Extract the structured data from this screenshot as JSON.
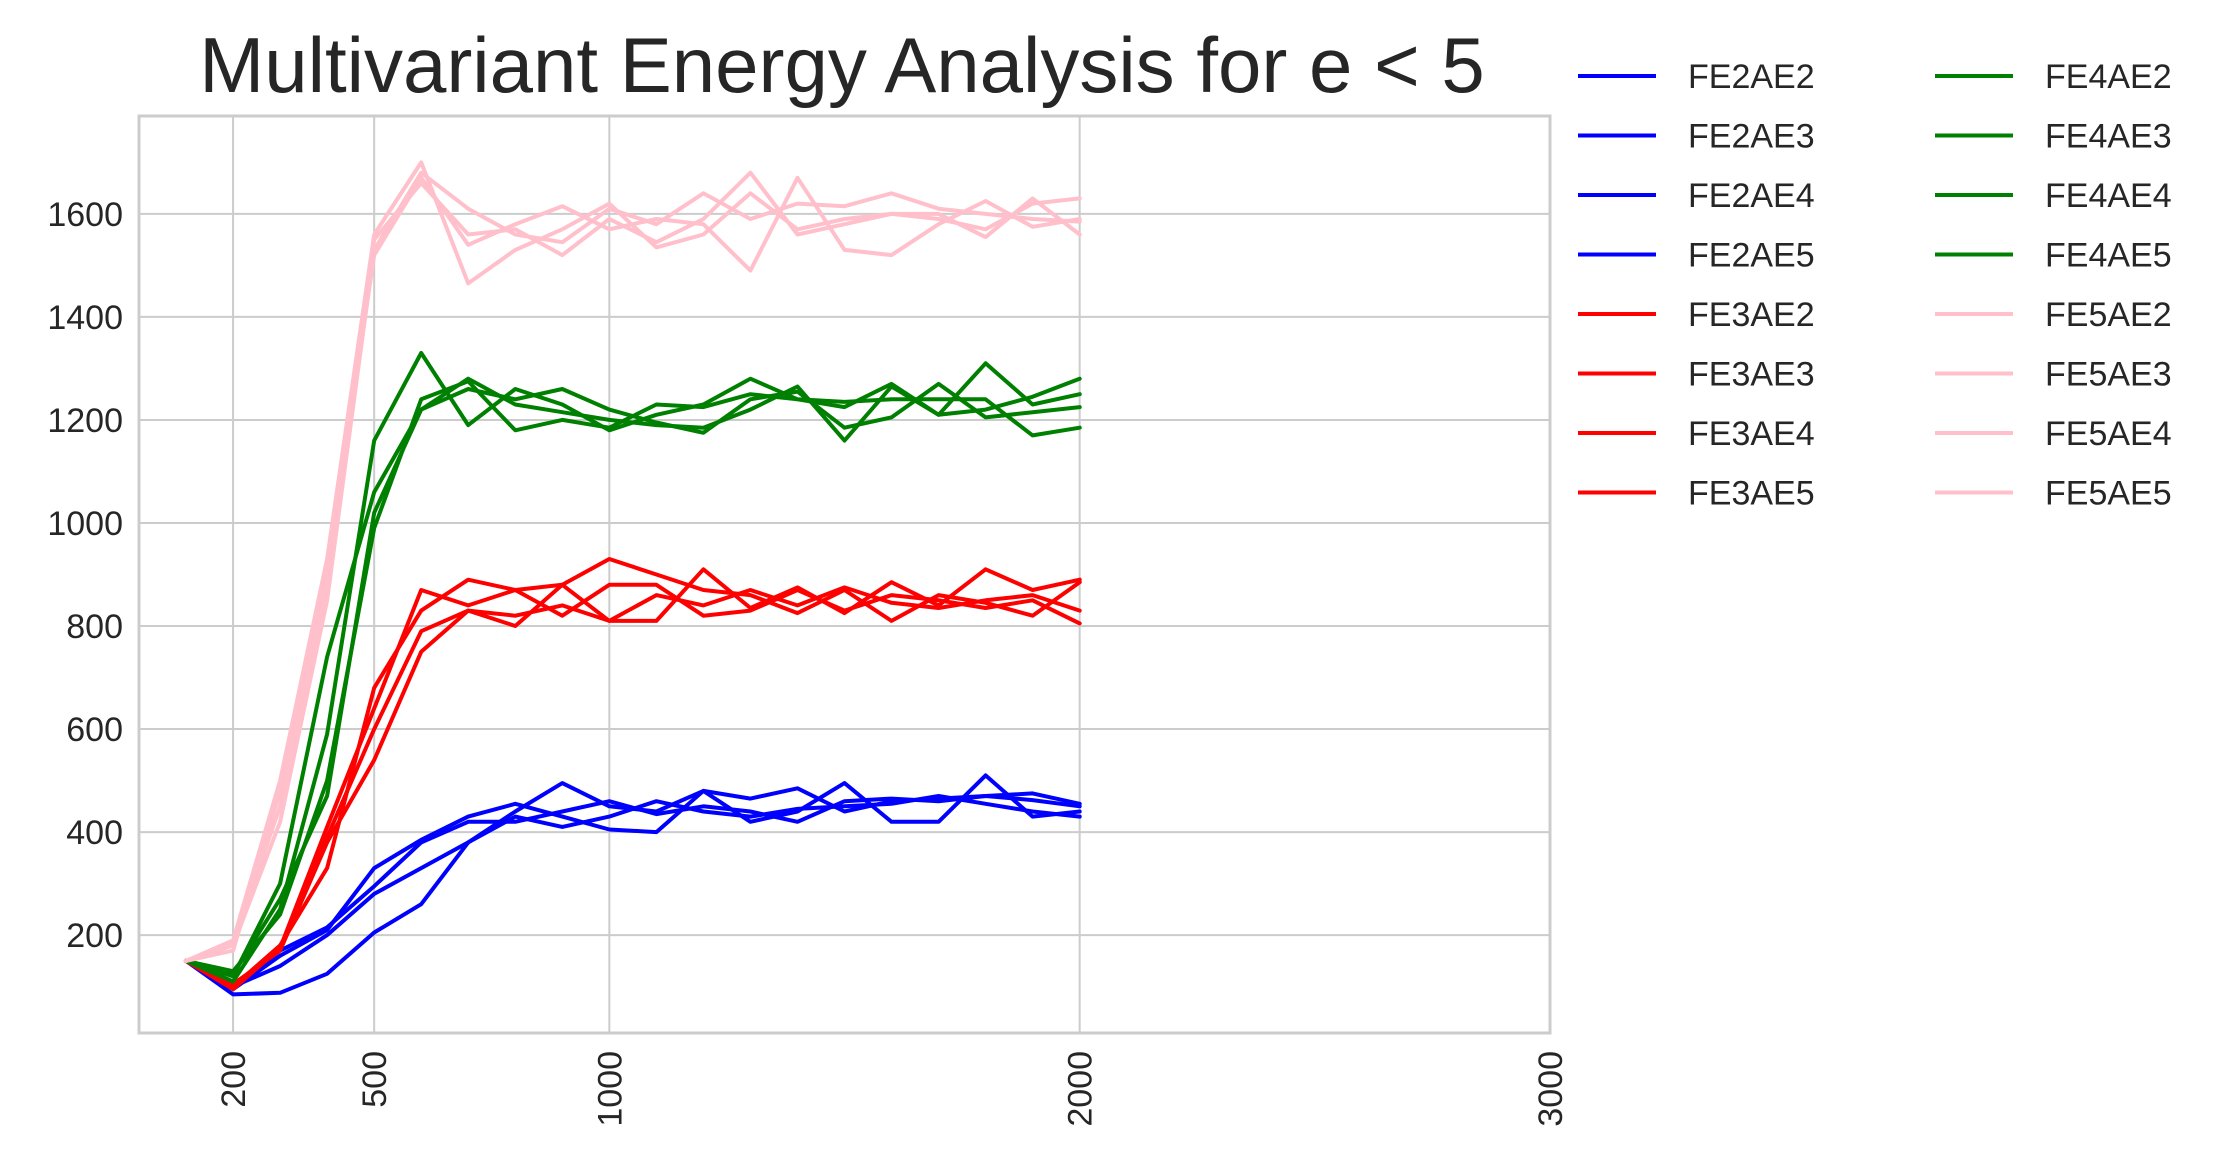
{
  "chart_data": {
    "type": "line",
    "title": "Multivariant Energy Analysis for e < 5",
    "xlabel": "",
    "ylabel": "",
    "xlim": [
      0,
      3000
    ],
    "ylim": [
      10,
      1790
    ],
    "xticks": [
      200,
      500,
      1000,
      2000,
      3000
    ],
    "xtick_labels": [
      "200",
      "500",
      "1000",
      "2000",
      "3000"
    ],
    "yticks": [
      200,
      400,
      600,
      800,
      1000,
      1200,
      1400,
      1600
    ],
    "ytick_labels": [
      "200",
      "400",
      "600",
      "800",
      "1000",
      "1200",
      "1400",
      "1600"
    ],
    "grid": true,
    "legend_position": "outside-right",
    "x": [
      100,
      200,
      300,
      400,
      500,
      600,
      700,
      800,
      900,
      1000,
      1100,
      1200,
      1300,
      1400,
      1500,
      1600,
      1700,
      1800,
      1900,
      2000
    ],
    "series": [
      {
        "name": "FE2AE2",
        "color": "#0000ff",
        "values": [
          150,
          85,
          88,
          125,
          205,
          260,
          380,
          440,
          495,
          450,
          440,
          480,
          465,
          485,
          440,
          460,
          465,
          470,
          462,
          450
        ]
      },
      {
        "name": "FE2AE3",
        "color": "#0000ff",
        "values": [
          150,
          100,
          140,
          200,
          280,
          330,
          380,
          430,
          410,
          430,
          460,
          440,
          430,
          445,
          450,
          455,
          470,
          455,
          440,
          430
        ]
      },
      {
        "name": "FE2AE4",
        "color": "#0000ff",
        "values": [
          150,
          95,
          160,
          210,
          330,
          385,
          430,
          455,
          430,
          405,
          400,
          480,
          420,
          440,
          495,
          420,
          420,
          510,
          430,
          440
        ]
      },
      {
        "name": "FE2AE5",
        "color": "#0000ff",
        "values": [
          150,
          100,
          170,
          215,
          295,
          380,
          420,
          420,
          440,
          460,
          435,
          450,
          440,
          420,
          460,
          465,
          460,
          470,
          475,
          455
        ]
      },
      {
        "name": "FE3AE2",
        "color": "#ff0000",
        "values": [
          150,
          95,
          175,
          410,
          640,
          870,
          840,
          870,
          880,
          810,
          810,
          910,
          835,
          875,
          825,
          885,
          840,
          910,
          870,
          890
        ]
      },
      {
        "name": "FE3AE3",
        "color": "#ff0000",
        "values": [
          150,
          105,
          170,
          380,
          540,
          750,
          830,
          800,
          880,
          930,
          900,
          870,
          860,
          825,
          870,
          810,
          860,
          845,
          820,
          885
        ]
      },
      {
        "name": "FE3AE4",
        "color": "#ff0000",
        "values": [
          150,
          100,
          180,
          330,
          680,
          830,
          890,
          870,
          820,
          880,
          880,
          820,
          830,
          870,
          830,
          860,
          850,
          835,
          850,
          805
        ]
      },
      {
        "name": "FE3AE5",
        "color": "#ff0000",
        "values": [
          150,
          100,
          175,
          390,
          600,
          790,
          830,
          820,
          840,
          810,
          860,
          840,
          870,
          840,
          875,
          845,
          835,
          850,
          860,
          830
        ]
      },
      {
        "name": "FE4AE2",
        "color": "#008000",
        "values": [
          150,
          110,
          250,
          590,
          1160,
          1330,
          1190,
          1260,
          1230,
          1180,
          1210,
          1230,
          1280,
          1240,
          1225,
          1270,
          1210,
          1310,
          1230,
          1250
        ]
      },
      {
        "name": "FE4AE3",
        "color": "#008000",
        "values": [
          150,
          120,
          300,
          740,
          1060,
          1220,
          1280,
          1230,
          1215,
          1200,
          1190,
          1185,
          1220,
          1265,
          1160,
          1265,
          1210,
          1220,
          1245,
          1280
        ]
      },
      {
        "name": "FE4AE4",
        "color": "#008000",
        "values": [
          150,
          130,
          240,
          500,
          990,
          1240,
          1275,
          1180,
          1200,
          1185,
          1230,
          1225,
          1250,
          1240,
          1235,
          1240,
          1240,
          1240,
          1170,
          1185
        ]
      },
      {
        "name": "FE4AE5",
        "color": "#008000",
        "values": [
          150,
          125,
          270,
          470,
          1020,
          1220,
          1260,
          1240,
          1260,
          1220,
          1195,
          1175,
          1240,
          1255,
          1185,
          1205,
          1270,
          1205,
          1215,
          1225
        ]
      },
      {
        "name": "FE5AE2",
        "color": "#ffc0cb",
        "values": [
          150,
          190,
          500,
          930,
          1560,
          1700,
          1465,
          1530,
          1570,
          1620,
          1535,
          1560,
          1640,
          1570,
          1590,
          1600,
          1600,
          1555,
          1630,
          1560
        ]
      },
      {
        "name": "FE5AE3",
        "color": "#ffc0cb",
        "values": [
          150,
          180,
          420,
          850,
          1530,
          1680,
          1610,
          1560,
          1545,
          1610,
          1580,
          1640,
          1590,
          1620,
          1615,
          1640,
          1610,
          1600,
          1590,
          1585
        ]
      },
      {
        "name": "FE5AE4",
        "color": "#ffc0cb",
        "values": [
          150,
          170,
          480,
          900,
          1520,
          1670,
          1540,
          1580,
          1615,
          1570,
          1590,
          1580,
          1490,
          1670,
          1530,
          1520,
          1580,
          1625,
          1575,
          1590
        ]
      },
      {
        "name": "FE5AE5",
        "color": "#ffc0cb",
        "values": [
          150,
          185,
          450,
          880,
          1550,
          1660,
          1560,
          1570,
          1520,
          1590,
          1545,
          1590,
          1680,
          1560,
          1580,
          1600,
          1590,
          1570,
          1620,
          1630
        ]
      }
    ]
  }
}
